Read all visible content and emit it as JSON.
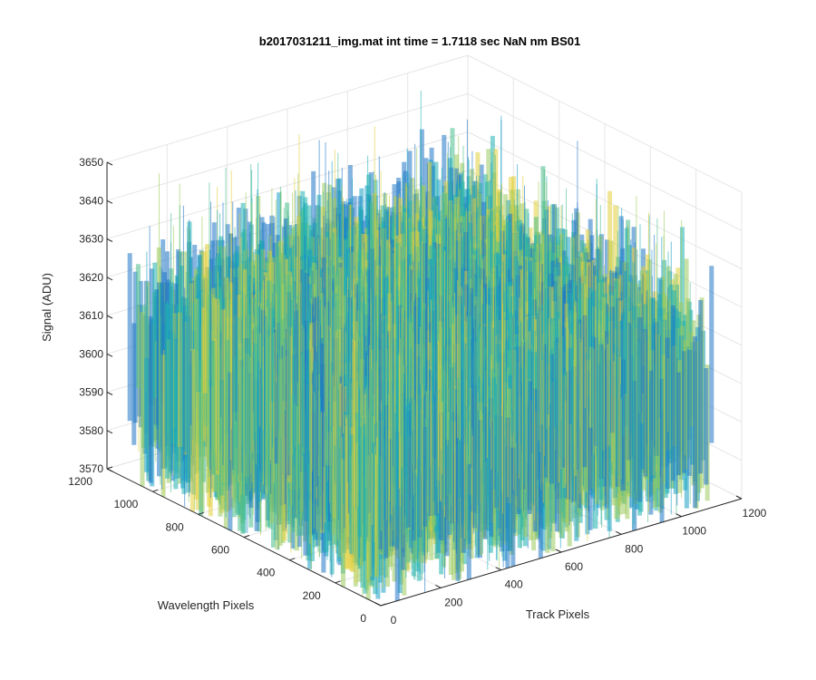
{
  "chart_data": {
    "type": "surface",
    "title": "b2017031211_img.mat int time = 1.7118 sec  NaN nm BS01",
    "xlabel": "Track Pixels",
    "ylabel": "Wavelength Pixels",
    "zlabel": "Signal (ADU)",
    "x_ticks": [
      "0",
      "200",
      "400",
      "600",
      "800",
      "1000",
      "1200"
    ],
    "y_ticks": [
      "0",
      "200",
      "400",
      "600",
      "800",
      "1000",
      "1200"
    ],
    "z_ticks": [
      "3570",
      "3580",
      "3590",
      "3600",
      "3610",
      "3620",
      "3630",
      "3640",
      "3650"
    ],
    "xlim": [
      0,
      1200
    ],
    "ylim": [
      0,
      1200
    ],
    "zlim": [
      3570,
      3650
    ],
    "data_extent": {
      "x": [
        0,
        1100
      ],
      "y": [
        0,
        1100
      ]
    },
    "signal_stats": {
      "mean": 3600,
      "typical_min": 3580,
      "typical_max": 3625
    },
    "grid": true,
    "colormap": [
      "#1f77c4",
      "#1a9fc6",
      "#21b3b0",
      "#4bbd8c",
      "#9ccb5e",
      "#e1cf3d"
    ]
  }
}
